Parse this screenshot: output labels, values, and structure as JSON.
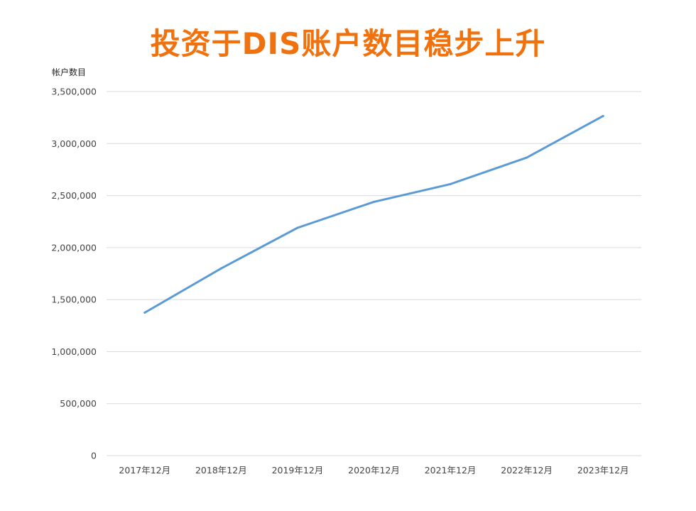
{
  "chart_data": {
    "type": "line",
    "title": "投资于DIS账户数目稳步上升",
    "ylabel": "帐户数目",
    "xlabel": "",
    "categories": [
      "2017年12月",
      "2018年12月",
      "2019年12月",
      "2020年12月",
      "2021年12月",
      "2022年12月",
      "2023年12月"
    ],
    "series": [
      {
        "values": [
          1375000,
          1800000,
          2190000,
          2440000,
          2610000,
          2865000,
          3265000
        ]
      }
    ],
    "ylim": [
      0,
      3500000
    ],
    "yticks": [
      "0",
      "500,000",
      "1,000,000",
      "1,500,000",
      "2,000,000",
      "2,500,000",
      "3,000,000",
      "3,500,000"
    ],
    "grid": true,
    "legend": "none",
    "colors": {
      "line": "#5b9bd5",
      "title": "#f0720f",
      "grid": "#d9d9d9"
    }
  }
}
